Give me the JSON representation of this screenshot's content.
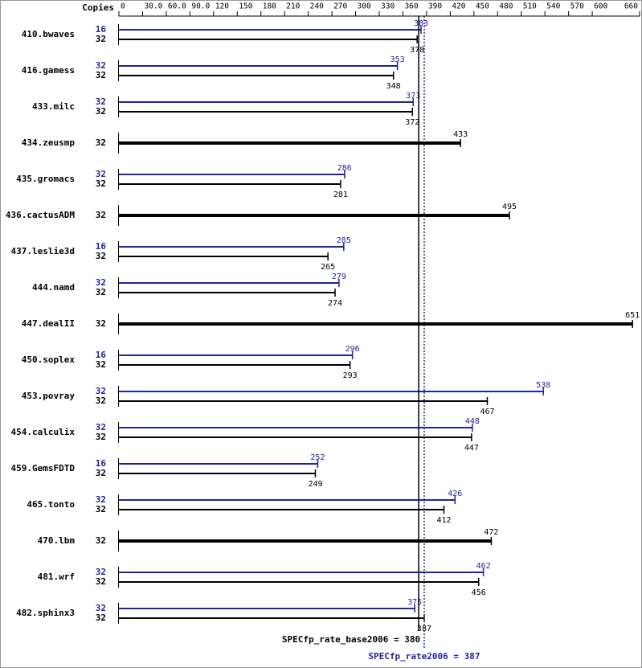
{
  "chart_data": {
    "type": "bar",
    "orientation": "horizontal",
    "copies_label": "Copies",
    "categories": [
      "410.bwaves",
      "416.gamess",
      "433.milc",
      "434.zeusmp",
      "435.gromacs",
      "436.cactusADM",
      "437.leslie3d",
      "444.namd",
      "447.dealII",
      "450.soplex",
      "453.povray",
      "454.calculix",
      "459.GemsFDTD",
      "465.tonto",
      "470.lbm",
      "481.wrf",
      "482.sphinx3"
    ],
    "series": [
      {
        "color": "#23239a",
        "copies": [
          16,
          32,
          32,
          null,
          32,
          null,
          16,
          32,
          null,
          16,
          32,
          32,
          16,
          32,
          null,
          32,
          32
        ],
        "values": [
          383,
          353,
          373,
          null,
          286,
          null,
          285,
          279,
          null,
          296,
          538,
          448,
          252,
          426,
          null,
          462,
          375
        ]
      },
      {
        "color": "#000000",
        "copies": [
          32,
          32,
          32,
          32,
          32,
          32,
          32,
          32,
          32,
          32,
          32,
          32,
          32,
          32,
          32,
          32,
          32
        ],
        "values": [
          378,
          348,
          372,
          433,
          281,
          495,
          265,
          274,
          651,
          293,
          467,
          447,
          249,
          412,
          472,
          456,
          387
        ]
      }
    ],
    "xlim": [
      0,
      660
    ],
    "xticks": [
      0,
      {
        "value": 30,
        "label": "30.0"
      },
      {
        "value": 60,
        "label": "60.0"
      },
      {
        "value": 90,
        "label": "90.0"
      },
      120,
      150,
      180,
      210,
      240,
      270,
      300,
      330,
      360,
      390,
      420,
      450,
      480,
      510,
      540,
      570,
      600,
      660
    ],
    "reference_lines": [
      {
        "text": "SPECfp_rate_base2006 = 380",
        "value": 380,
        "color": "#000000",
        "style": "solid"
      },
      {
        "text": "SPECfp_rate2006 = 387",
        "value": 387,
        "color": "#23239a",
        "style": "dotted"
      }
    ]
  }
}
